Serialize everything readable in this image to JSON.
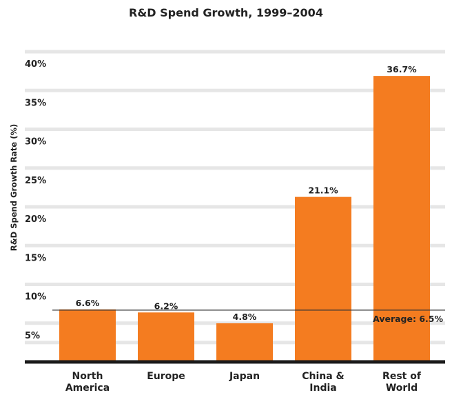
{
  "chart_data": {
    "type": "bar",
    "title": "R&D Spend Growth, 1999–2004",
    "ylabel": "R&D Spend Growth Rate (%)",
    "xlabel": "",
    "categories": [
      [
        "North",
        "America"
      ],
      [
        "Europe"
      ],
      [
        "Japan"
      ],
      [
        "China &",
        "India"
      ],
      [
        "Rest of",
        "World"
      ]
    ],
    "values": [
      6.6,
      6.2,
      4.8,
      21.1,
      36.7
    ],
    "value_labels": [
      "6.6%",
      "6.2%",
      "4.8%",
      "21.1%",
      "36.7%"
    ],
    "yticks": [
      5,
      10,
      15,
      20,
      25,
      30,
      35,
      40
    ],
    "ytick_labels": [
      "5%",
      "10%",
      "15%",
      "20%",
      "25%",
      "30%",
      "35%",
      "40%"
    ],
    "ylim": [
      0,
      40
    ],
    "grid": true,
    "average": {
      "value": 6.5,
      "label": "Average: 6.5%"
    },
    "colors": {
      "bar": "#f47c20",
      "grid": "#e6e6e6",
      "baseline": "#1a1a1a"
    }
  }
}
